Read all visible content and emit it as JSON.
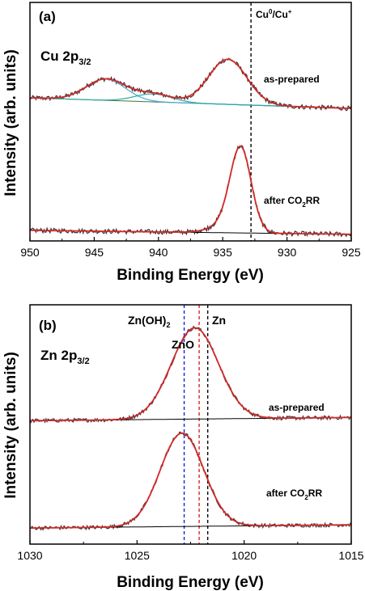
{
  "chart_data": [
    {
      "type": "line",
      "panel_label": "(a)",
      "core_level": {
        "base": "Cu 2p",
        "sub": "3/2"
      },
      "xlabel": "Binding Energy (eV)",
      "ylabel": "Intensity (arb. units)",
      "xlim": [
        950,
        925
      ],
      "xticks": [
        950,
        945,
        940,
        935,
        930,
        925
      ],
      "ref_line": {
        "x": 932.8,
        "label_base": "Cu",
        "label_sup1": "0",
        "label_mid": "/Cu",
        "label_sup2": "+",
        "color": "#000000"
      },
      "colors": {
        "raw": "#e8524a",
        "fit": "#d42a2a",
        "component": "#4aa8d8",
        "component2": "#2aa6a0",
        "background": "#3a7a3a",
        "background_after": "#000000",
        "noise": "#333333"
      },
      "spectra": [
        {
          "label_base": "as-prepared",
          "baseline": {
            "x": [
              950,
              925
            ],
            "y": [
              1.0,
              0.92
            ]
          },
          "peaks": [
            {
              "center": 944.1,
              "fwhm": 3.6,
              "height": 0.16
            },
            {
              "center": 940.4,
              "fwhm": 3.4,
              "height": 0.06
            },
            {
              "center": 934.6,
              "fwhm": 3.5,
              "height": 0.34
            }
          ],
          "components": [
            {
              "center": 944.1,
              "fwhm": 3.6,
              "height": 0.16
            },
            {
              "center": 940.4,
              "fwhm": 3.4,
              "height": 0.06
            }
          ]
        },
        {
          "label_base": "after CO",
          "label_sub": "2",
          "label_tail": "RR",
          "baseline": {
            "x": [
              950,
              925
            ],
            "y": [
              0.0,
              -0.03
            ]
          },
          "peaks": [
            {
              "center": 933.6,
              "fwhm": 1.9,
              "height": 0.6
            },
            {
              "center": 934.5,
              "fwhm": 3.0,
              "height": 0.07
            }
          ],
          "components": []
        }
      ]
    },
    {
      "type": "line",
      "panel_label": "(b)",
      "core_level": {
        "base": "Zn 2p",
        "sub": "3/2"
      },
      "xlabel": "Binding Energy (eV)",
      "ylabel": "Intensity (arb. units)",
      "xlim": [
        1030,
        1015
      ],
      "xticks": [
        1030,
        1025,
        1020,
        1015
      ],
      "ref_lines": [
        {
          "x": 1022.8,
          "label_base": "Zn(OH)",
          "label_sub": "2",
          "color": "#2020cc"
        },
        {
          "x": 1022.1,
          "label_base": "ZnO",
          "color": "#dd2222"
        },
        {
          "x": 1021.7,
          "label_base": "Zn",
          "color": "#000000"
        }
      ],
      "colors": {
        "fit": "#d42a2a",
        "background": "#000000",
        "noise": "#333333"
      },
      "spectra": [
        {
          "label_base": "as-prepared",
          "baseline": {
            "x": [
              1030,
              1015
            ],
            "y": [
              1.0,
              1.03
            ]
          },
          "peaks": [
            {
              "center": 1022.3,
              "fwhm": 2.6,
              "height": 0.85
            }
          ],
          "components": []
        },
        {
          "label_base": "after CO",
          "label_sub": "2",
          "label_tail": "RR",
          "baseline": {
            "x": [
              1030,
              1015
            ],
            "y": [
              0.0,
              0.03
            ]
          },
          "peaks": [
            {
              "center": 1022.9,
              "fwhm": 2.4,
              "height": 0.87
            }
          ],
          "components": []
        }
      ]
    }
  ]
}
